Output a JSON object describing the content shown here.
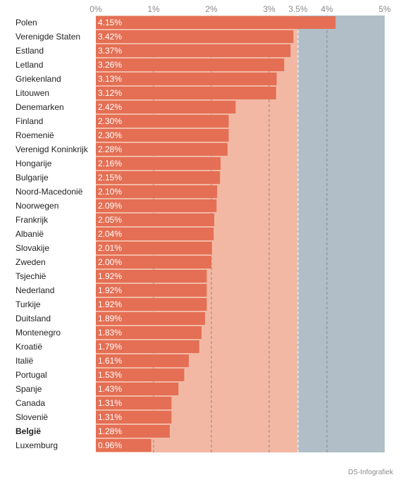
{
  "chart_data": {
    "type": "bar",
    "orientation": "horizontal",
    "categories": [
      "Polen",
      "Verenigde Staten",
      "Estland",
      "Letland",
      "Griekenland",
      "Litouwen",
      "Denemarken",
      "Finland",
      "Roemenië",
      "Verenigd Koninkrijk",
      "Hongarije",
      "Bulgarije",
      "Noord-Macedonië",
      "Noorwegen",
      "Frankrijk",
      "Albanië",
      "Slovakije",
      "Zweden",
      "Tsjechië",
      "Nederland",
      "Turkije",
      "Duitsland",
      "Montenegro",
      "Kroatië",
      "Italië",
      "Portugal",
      "Spanje",
      "Canada",
      "Slovenië",
      "België",
      "Luxemburg"
    ],
    "values": [
      4.15,
      3.42,
      3.37,
      3.26,
      3.13,
      3.12,
      2.42,
      2.3,
      2.3,
      2.28,
      2.16,
      2.15,
      2.1,
      2.09,
      2.05,
      2.04,
      2.01,
      2.0,
      1.92,
      1.92,
      1.92,
      1.89,
      1.83,
      1.79,
      1.61,
      1.53,
      1.43,
      1.31,
      1.31,
      1.28,
      0.96
    ],
    "value_labels": [
      "4.15%",
      "3.42%",
      "3.37%",
      "3.26%",
      "3.13%",
      "3.12%",
      "2.42%",
      "2.30%",
      "2.30%",
      "2.28%",
      "2.16%",
      "2.15%",
      "2.10%",
      "2.09%",
      "2.05%",
      "2.04%",
      "2.01%",
      "2.00%",
      "1.92%",
      "1.92%",
      "1.92%",
      "1.89%",
      "1.83%",
      "1.79%",
      "1.61%",
      "1.53%",
      "1.43%",
      "1.31%",
      "1.31%",
      "1.28%",
      "0.96%"
    ],
    "highlighted": [
      "België"
    ],
    "xlim": [
      0,
      5
    ],
    "ticks": [
      0,
      1,
      2,
      3,
      3.5,
      4,
      5
    ],
    "tick_labels": [
      "0%",
      "1%",
      "2%",
      "3%",
      "3.5%",
      "4%",
      "5%"
    ],
    "bands": [
      {
        "from": 0,
        "to": 3.5,
        "color": "#f3b8a4"
      },
      {
        "from": 3.5,
        "to": 5,
        "color": "#b1bec7"
      }
    ],
    "bar_color": "#e46f54",
    "title": "",
    "xlabel": "",
    "ylabel": ""
  },
  "footer": {
    "source": "DS-Infografiek"
  }
}
